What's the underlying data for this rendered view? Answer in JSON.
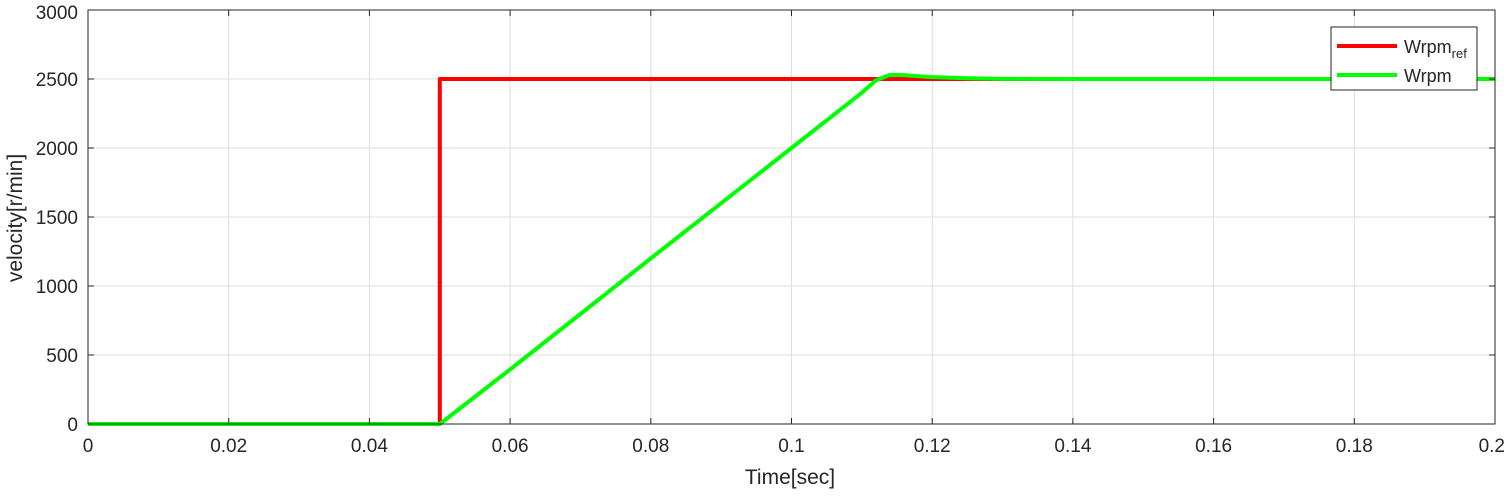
{
  "chart_data": {
    "type": "line",
    "title": "",
    "xlabel": "Time[sec]",
    "ylabel": "velocity[r/min]",
    "xlim": [
      0,
      0.2
    ],
    "ylim": [
      0,
      3000
    ],
    "xticks": [
      0,
      0.02,
      0.04,
      0.06,
      0.08,
      0.1,
      0.12,
      0.14,
      0.16,
      0.18,
      0.2
    ],
    "xtick_labels": [
      "0",
      "0.02",
      "0.04",
      "0.06",
      "0.08",
      "0.1",
      "0.12",
      "0.14",
      "0.16",
      "0.18",
      "0.2"
    ],
    "yticks": [
      0,
      500,
      1000,
      1500,
      2000,
      2500,
      3000
    ],
    "ytick_labels": [
      "0",
      "500",
      "1000",
      "1500",
      "2000",
      "2500",
      "3000"
    ],
    "grid": true,
    "legend_position": "top-right",
    "series": [
      {
        "name": "Wrpm",
        "name_subscript": "ref",
        "color": "#ff0000",
        "x": [
          0,
          0.05,
          0.05,
          0.2
        ],
        "y": [
          0,
          0,
          2500,
          2500
        ]
      },
      {
        "name": "Wrpm",
        "name_subscript": "",
        "color": "#00ff00",
        "x": [
          0,
          0.05,
          0.06,
          0.08,
          0.1,
          0.11,
          0.112,
          0.114,
          0.116,
          0.118,
          0.12,
          0.125,
          0.13,
          0.14,
          0.15,
          0.2
        ],
        "y": [
          0,
          0,
          395,
          1200,
          2000,
          2400,
          2490,
          2530,
          2528,
          2520,
          2514,
          2506,
          2501,
          2500,
          2500,
          2500
        ]
      }
    ]
  }
}
